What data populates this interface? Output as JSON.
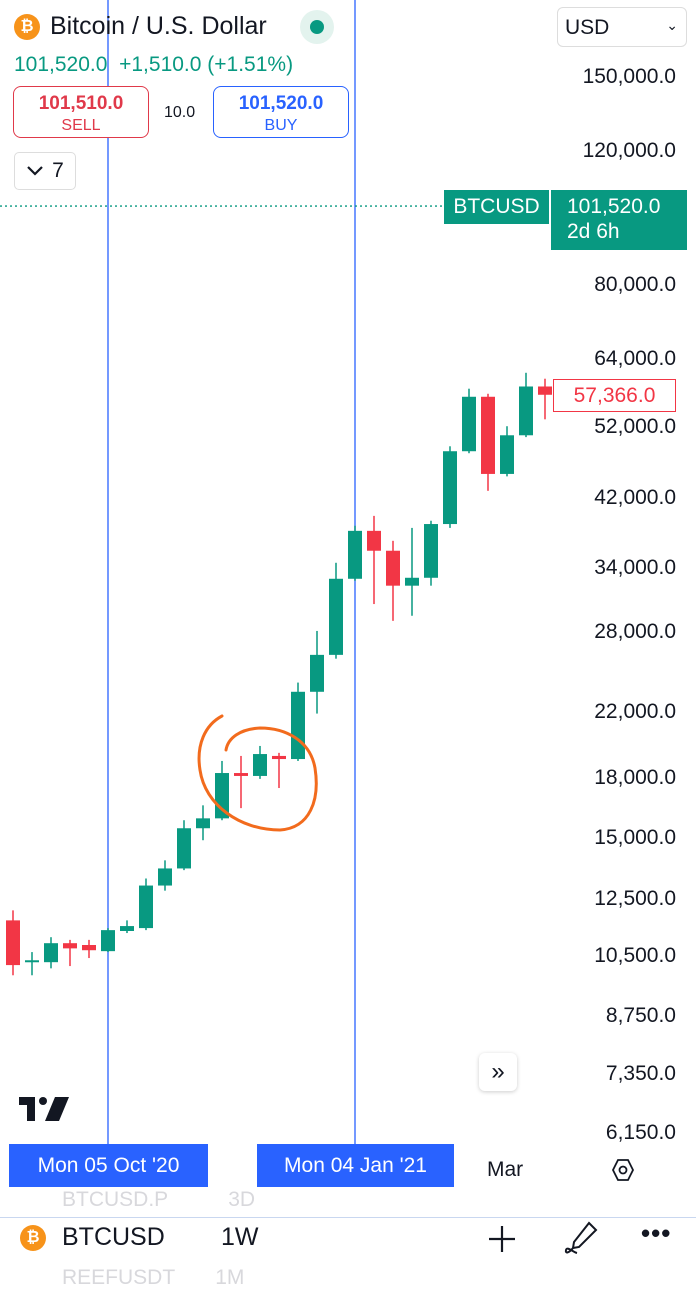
{
  "header": {
    "title": "Bitcoin / U.S. Dollar",
    "icon": "bitcoin-icon",
    "last_price": "101,520.0",
    "change": "+1,510.0 (+1.51%)",
    "market_status": "open"
  },
  "trade": {
    "sell_price": "101,510.0",
    "sell_label": "SELL",
    "spread": "10.0",
    "buy_price": "101,520.0",
    "buy_label": "BUY"
  },
  "indicators_toggle": {
    "count": "7"
  },
  "currency": {
    "selected": "USD"
  },
  "current_price_tag": {
    "symbol": "BTCUSD",
    "price": "101,520.0",
    "countdown": "2d 6h"
  },
  "last_candle_tag": "57,366.0",
  "time_axis": {
    "crosshair_1": "Mon 05 Oct '20",
    "crosshair_2": "Mon 04 Jan '21",
    "tick": "Mar"
  },
  "bottom": {
    "symbol": "BTCUSD",
    "interval": "1W",
    "above_symbol": "BTCUSD.P",
    "above_interval": "3D",
    "below_symbol": "REEFUSDT",
    "below_interval": "1M"
  },
  "colors": {
    "up": "#089981",
    "down": "#f23645",
    "crosshair": "#2962ff",
    "annotation": "#f26b1d",
    "bitcoin": "#f7931a"
  },
  "chart_data": {
    "type": "candlestick",
    "scale": "log",
    "ylim": [
      6000,
      155000
    ],
    "y_ticks": [
      "150,000.0",
      "120,000.0",
      "80,000.0",
      "64,000.0",
      "52,000.0",
      "42,000.0",
      "34,000.0",
      "28,000.0",
      "22,000.0",
      "18,000.0",
      "15,000.0",
      "12,500.0",
      "10,500.0",
      "8,750.0",
      "7,350.0",
      "6,150.0"
    ],
    "y_tick_values": [
      150000,
      120000,
      80000,
      64000,
      52000,
      42000,
      34000,
      28000,
      22000,
      18000,
      15000,
      12500,
      10500,
      8750,
      7350,
      6150
    ],
    "current_price": 101520,
    "crosshair_dates": [
      "2020-10-05",
      "2021-01-04"
    ],
    "candles": [
      {
        "date": "2020-08-31",
        "o": 11700,
        "h": 12060,
        "l": 9910,
        "c": 10220
      },
      {
        "date": "2020-09-07",
        "o": 10310,
        "h": 10630,
        "l": 9910,
        "c": 10370
      },
      {
        "date": "2020-09-14",
        "o": 10310,
        "h": 11120,
        "l": 10120,
        "c": 10920
      },
      {
        "date": "2020-09-21",
        "o": 10920,
        "h": 11030,
        "l": 10190,
        "c": 10750
      },
      {
        "date": "2020-09-28",
        "o": 10860,
        "h": 11030,
        "l": 10440,
        "c": 10690
      },
      {
        "date": "2020-10-05",
        "o": 10660,
        "h": 11430,
        "l": 10630,
        "c": 11360
      },
      {
        "date": "2020-10-12",
        "o": 11330,
        "h": 11700,
        "l": 11260,
        "c": 11500
      },
      {
        "date": "2020-10-19",
        "o": 11430,
        "h": 13280,
        "l": 11360,
        "c": 13000
      },
      {
        "date": "2020-10-26",
        "o": 13000,
        "h": 14030,
        "l": 12800,
        "c": 13690
      },
      {
        "date": "2020-11-02",
        "o": 13690,
        "h": 15840,
        "l": 13620,
        "c": 15460
      },
      {
        "date": "2020-11-09",
        "o": 15460,
        "h": 16570,
        "l": 14910,
        "c": 15930
      },
      {
        "date": "2020-11-16",
        "o": 15930,
        "h": 18950,
        "l": 15840,
        "c": 18270
      },
      {
        "date": "2020-11-23",
        "o": 18270,
        "h": 19240,
        "l": 16430,
        "c": 18110
      },
      {
        "date": "2020-11-30",
        "o": 18110,
        "h": 19830,
        "l": 17950,
        "c": 19350
      },
      {
        "date": "2020-12-07",
        "o": 19240,
        "h": 19420,
        "l": 17460,
        "c": 19060
      },
      {
        "date": "2020-12-14",
        "o": 19060,
        "h": 24020,
        "l": 18950,
        "c": 23360
      },
      {
        "date": "2020-12-21",
        "o": 23360,
        "h": 28080,
        "l": 21870,
        "c": 26120
      },
      {
        "date": "2020-12-28",
        "o": 26120,
        "h": 34510,
        "l": 25820,
        "c": 32880
      },
      {
        "date": "2021-01-04",
        "o": 32880,
        "h": 38600,
        "l": 32680,
        "c": 38010
      },
      {
        "date": "2021-01-11",
        "o": 38010,
        "h": 39770,
        "l": 30460,
        "c": 35790
      },
      {
        "date": "2021-01-18",
        "o": 35790,
        "h": 36880,
        "l": 28950,
        "c": 32200
      },
      {
        "date": "2021-01-25",
        "o": 32200,
        "h": 38350,
        "l": 29400,
        "c": 32980
      },
      {
        "date": "2021-02-01",
        "o": 32980,
        "h": 39190,
        "l": 32200,
        "c": 38800
      },
      {
        "date": "2021-02-08",
        "o": 38800,
        "h": 49090,
        "l": 38350,
        "c": 48360
      },
      {
        "date": "2021-02-15",
        "o": 48360,
        "h": 58430,
        "l": 48070,
        "c": 57020
      },
      {
        "date": "2021-02-22",
        "o": 57020,
        "h": 57540,
        "l": 42900,
        "c": 45150
      },
      {
        "date": "2021-03-01",
        "o": 45150,
        "h": 52160,
        "l": 44820,
        "c": 50750
      },
      {
        "date": "2021-03-08",
        "o": 50750,
        "h": 61310,
        "l": 50470,
        "c": 58820
      },
      {
        "date": "2021-03-15",
        "o": 58820,
        "h": 60220,
        "l": 53260,
        "c": 57366
      }
    ]
  }
}
